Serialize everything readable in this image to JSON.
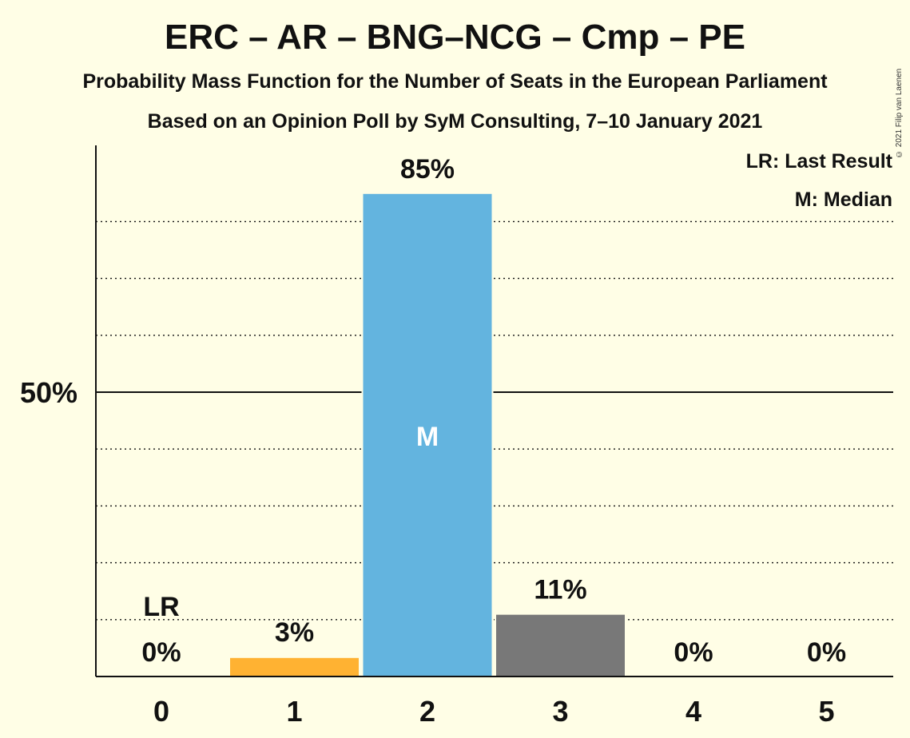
{
  "title": "ERC – AR – BNG–NCG – Cmp – PE",
  "subtitle": "Probability Mass Function for the Number of Seats in the European Parliament",
  "subtitle2": "Based on an Opinion Poll by SyM Consulting, 7–10 January 2021",
  "copyright": "© 2021 Filip van Laenen",
  "legend": {
    "last_result": "LR: Last Result",
    "median": "M: Median"
  },
  "chart_data": {
    "type": "bar",
    "categories": [
      "0",
      "1",
      "2",
      "3",
      "4",
      "5"
    ],
    "values": [
      0,
      3.4,
      85,
      11,
      0,
      0
    ],
    "value_labels": [
      "0%",
      "3%",
      "85%",
      "11%",
      "0%",
      "0%"
    ],
    "colors": [
      "#FFB232",
      "#FFB232",
      "#63B4DF",
      "#787878",
      "#787878",
      "#787878"
    ],
    "ylim": [
      0,
      93
    ],
    "y_tick_label": "50%",
    "y_tick_value": 50,
    "gridlines": [
      10,
      20,
      30,
      40,
      60,
      70,
      80
    ],
    "last_result": {
      "category": "0",
      "label": "LR"
    },
    "median": {
      "category": "2",
      "label": "M"
    },
    "grid": "dotted",
    "legend_position": "top-right"
  }
}
